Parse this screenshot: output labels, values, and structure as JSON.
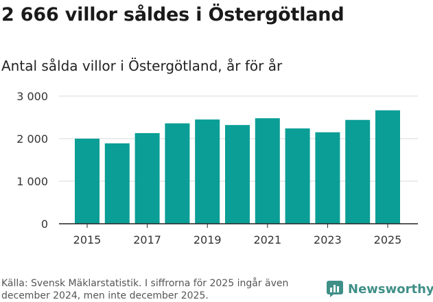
{
  "title": "2 666 villor såldes i Östergötland",
  "subtitle": "Antal sålda villor i Östergötland, år för år",
  "source": "Källa: Svensk Mäklarstatistik. I siffrorna för 2025 ingår även december 2024, men inte december 2025.",
  "brand": {
    "name": "Newsworthy",
    "icon": "bar-chart-logo-icon"
  },
  "colors": {
    "bar": "#0a9e96",
    "grid": "#d9d9d9",
    "axis": "#222222",
    "brand": "#3f8f88"
  },
  "chart_data": {
    "type": "bar",
    "categories": [
      "2015",
      "2016",
      "2017",
      "2018",
      "2019",
      "2020",
      "2021",
      "2022",
      "2023",
      "2024",
      "2025"
    ],
    "values": [
      2000,
      1890,
      2130,
      2360,
      2450,
      2320,
      2480,
      2240,
      2150,
      2440,
      2666
    ],
    "ylim": [
      0,
      3000
    ],
    "yticks": [
      0,
      1000,
      2000,
      3000
    ],
    "ytick_labels": [
      "0",
      "1 000",
      "2 000",
      "3 000"
    ],
    "xtick_labels": [
      "2015",
      "2017",
      "2019",
      "2021",
      "2023",
      "2025"
    ],
    "xlabel": "",
    "ylabel": "",
    "grid": true,
    "legend": "none"
  }
}
